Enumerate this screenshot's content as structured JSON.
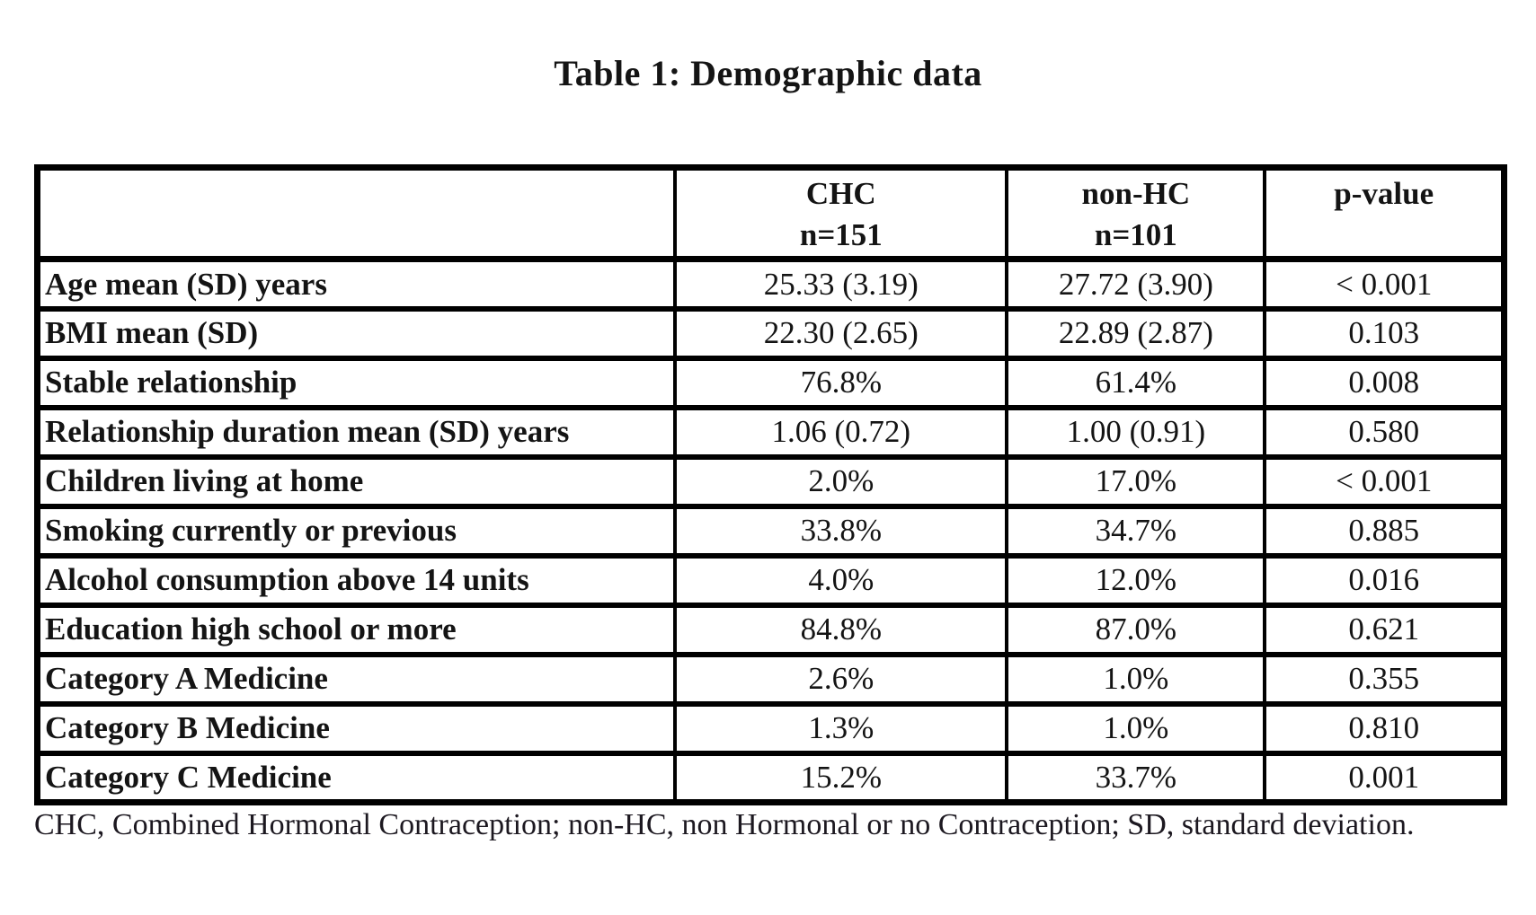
{
  "title": "Table 1: Demographic data",
  "table": {
    "headers": [
      {
        "line1": "",
        "line2": ""
      },
      {
        "line1": "CHC",
        "line2": "n=151"
      },
      {
        "line1": "non-HC",
        "line2": "n=101"
      },
      {
        "line1": "p-value",
        "line2": ""
      }
    ],
    "rows": [
      {
        "label": "Age mean (SD) years",
        "chc": "25.33 (3.19)",
        "nonhc": "27.72 (3.90)",
        "p": "< 0.001"
      },
      {
        "label": "BMI mean (SD)",
        "chc": "22.30 (2.65)",
        "nonhc": "22.89 (2.87)",
        "p": "0.103"
      },
      {
        "label": "Stable relationship",
        "chc": "76.8%",
        "nonhc": "61.4%",
        "p": "0.008"
      },
      {
        "label": "Relationship duration mean (SD) years",
        "chc": "1.06 (0.72)",
        "nonhc": "1.00 (0.91)",
        "p": "0.580"
      },
      {
        "label": "Children living at home",
        "chc": "2.0%",
        "nonhc": "17.0%",
        "p": "< 0.001"
      },
      {
        "label": "Smoking currently or previous",
        "chc": "33.8%",
        "nonhc": "34.7%",
        "p": "0.885"
      },
      {
        "label": "Alcohol consumption above 14 units",
        "chc": "4.0%",
        "nonhc": "12.0%",
        "p": "0.016"
      },
      {
        "label": "Education high school or more",
        "chc": "84.8%",
        "nonhc": "87.0%",
        "p": "0.621"
      },
      {
        "label": "Category A Medicine",
        "chc": "2.6%",
        "nonhc": "1.0%",
        "p": "0.355"
      },
      {
        "label": "Category B Medicine",
        "chc": "1.3%",
        "nonhc": "1.0%",
        "p": "0.810"
      },
      {
        "label": "Category C Medicine",
        "chc": "15.2%",
        "nonhc": "33.7%",
        "p": "0.001"
      }
    ]
  },
  "footnote": "CHC, Combined Hormonal Contraception; non-HC, non Hormonal or no Contraception; SD, standard deviation.",
  "colors": {
    "border": "#000000",
    "text": "#141414",
    "background": "#ffffff"
  }
}
